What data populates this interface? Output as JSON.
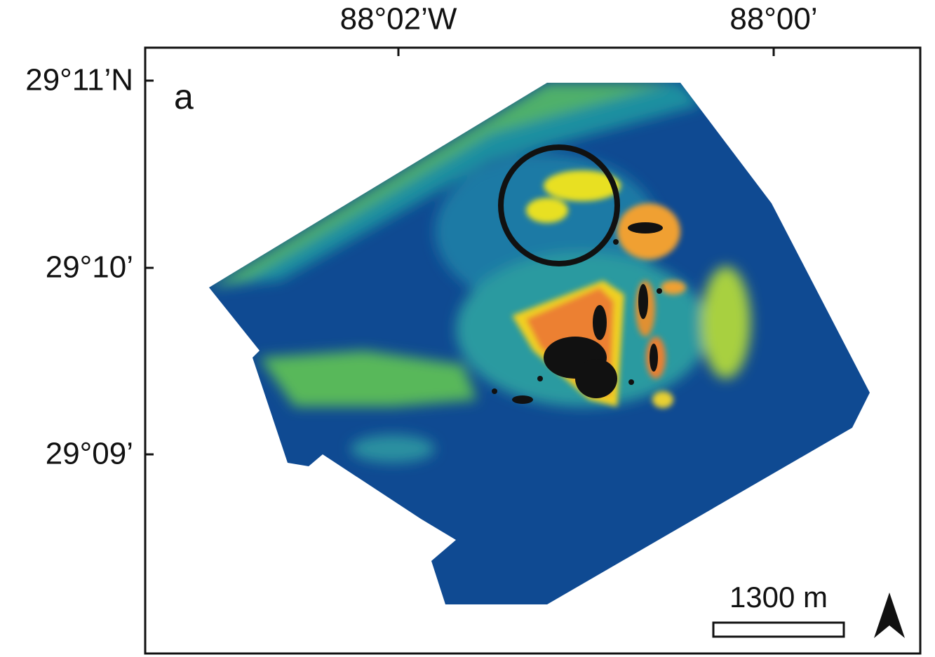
{
  "map": {
    "panel_label": "a",
    "x_ticks": [
      "88°02’W",
      "88°00’"
    ],
    "y_ticks": [
      "29°11’N",
      "29°10’",
      "29°09’"
    ],
    "scale_bar": "1300 m"
  }
}
